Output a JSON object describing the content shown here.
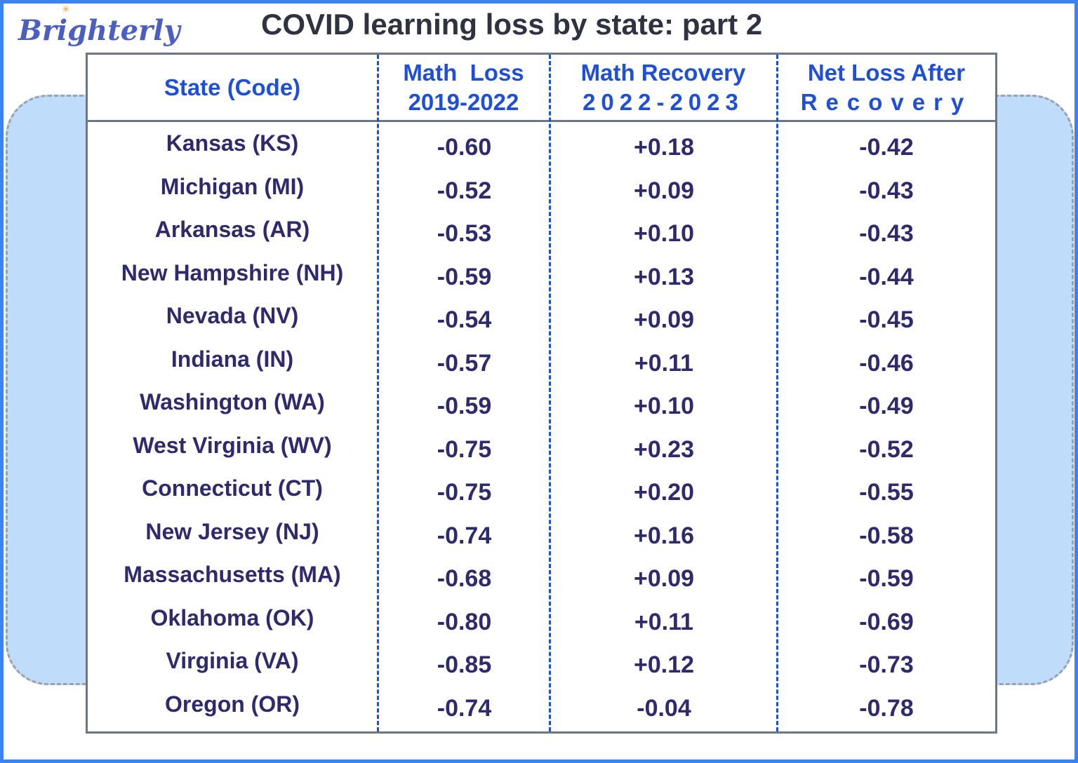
{
  "brand": {
    "logo": "Brighterly"
  },
  "title": "COVID learning loss by state: part 2",
  "colors": {
    "frame": "#3b82f6",
    "header_text": "#1f4fd6",
    "cell_text": "#2e2a6b",
    "side_panel": "#bfdcfb"
  },
  "chart_data": {
    "type": "table",
    "title": "COVID learning loss by state: part 2",
    "columns": [
      {
        "line1": "State (Code)",
        "line2": ""
      },
      {
        "line1": "Math  Loss",
        "line2": "2019-2022"
      },
      {
        "line1": "Math Recovery",
        "line2": "2022-2023"
      },
      {
        "line1": "Net Loss After",
        "line2": "Recovery"
      }
    ],
    "rows": [
      [
        "Kansas (KS)",
        "-0.60",
        "+0.18",
        "-0.42"
      ],
      [
        "Michigan (MI)",
        "-0.52",
        "+0.09",
        "-0.43"
      ],
      [
        "Arkansas (AR)",
        "-0.53",
        "+0.10",
        "-0.43"
      ],
      [
        "New Hampshire (NH)",
        "-0.59",
        "+0.13",
        "-0.44"
      ],
      [
        "Nevada (NV)",
        "-0.54",
        "+0.09",
        "-0.45"
      ],
      [
        "Indiana (IN)",
        "-0.57",
        "+0.11",
        "-0.46"
      ],
      [
        "Washington (WA)",
        "-0.59",
        "+0.10",
        "-0.49"
      ],
      [
        "West Virginia (WV)",
        "-0.75",
        "+0.23",
        "-0.52"
      ],
      [
        "Connecticut (CT)",
        "-0.75",
        "+0.20",
        "-0.55"
      ],
      [
        "New Jersey (NJ)",
        "-0.74",
        "+0.16",
        "-0.58"
      ],
      [
        "Massachusetts (MA)",
        "-0.68",
        "+0.09",
        "-0.59"
      ],
      [
        "Oklahoma (OK)",
        "-0.80",
        "+0.11",
        "-0.69"
      ],
      [
        "Virginia (VA)",
        "-0.85",
        "+0.12",
        "-0.73"
      ],
      [
        "Oregon (OR)",
        "-0.74",
        "-0.04",
        "-0.78"
      ]
    ]
  }
}
